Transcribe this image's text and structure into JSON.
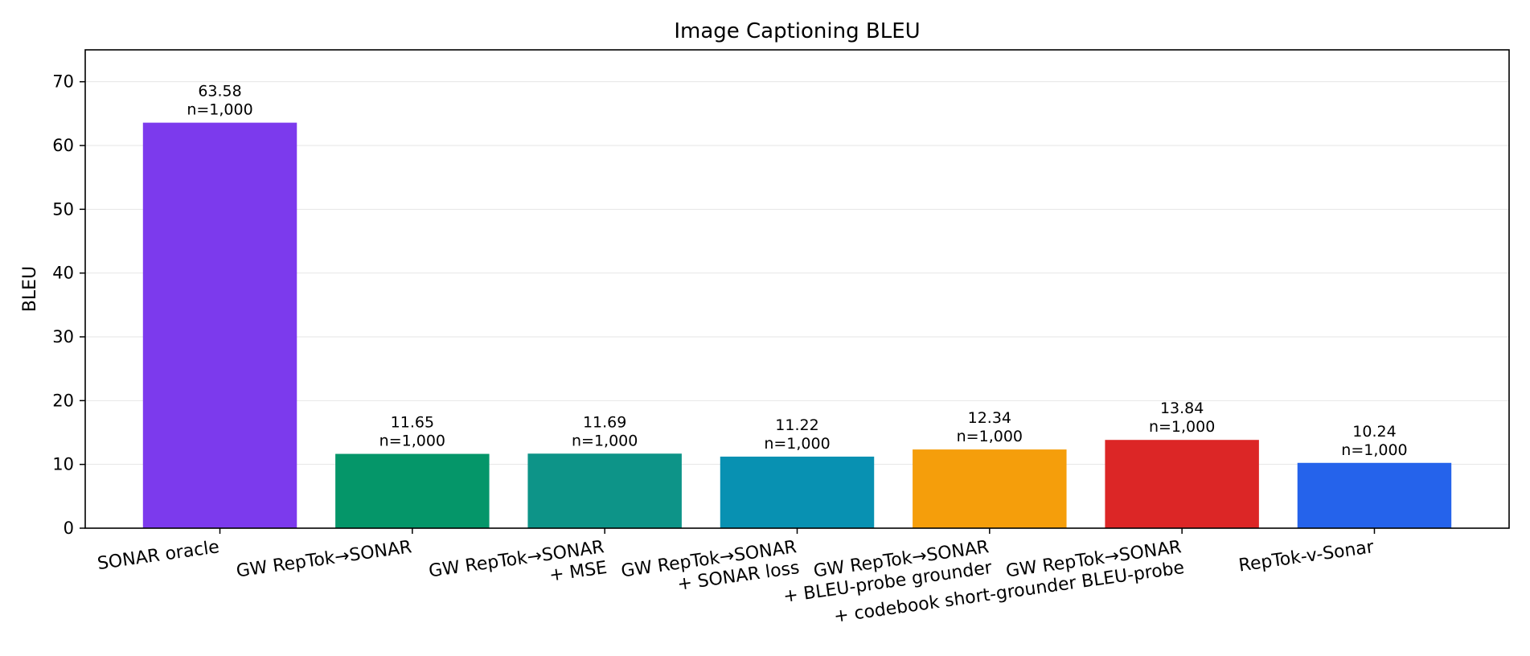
{
  "chart_data": {
    "type": "bar",
    "title": "Image Captioning BLEU",
    "xlabel": "",
    "ylabel": "BLEU",
    "ylim": [
      0,
      75
    ],
    "yticks": [
      0,
      10,
      20,
      30,
      40,
      50,
      60,
      70
    ],
    "grid": "y",
    "categories": [
      [
        "SONAR oracle"
      ],
      [
        "GW RepTok→SONAR"
      ],
      [
        "GW RepTok→SONAR",
        "+ MSE"
      ],
      [
        "GW RepTok→SONAR",
        "+ SONAR loss"
      ],
      [
        "GW RepTok→SONAR",
        "+ BLEU-probe grounder"
      ],
      [
        "GW RepTok→SONAR",
        "+ codebook short-grounder BLEU-probe"
      ],
      [
        "RepTok-v-Sonar"
      ]
    ],
    "values": [
      63.58,
      11.65,
      11.69,
      11.22,
      12.34,
      13.84,
      10.24
    ],
    "value_labels": [
      "63.58",
      "11.65",
      "11.69",
      "11.22",
      "12.34",
      "13.84",
      "10.24"
    ],
    "count_labels": [
      "n=1,000",
      "n=1,000",
      "n=1,000",
      "n=1,000",
      "n=1,000",
      "n=1,000",
      "n=1,000"
    ],
    "colors": [
      "#7c3aed",
      "#059669",
      "#0d9488",
      "#0891b2",
      "#f59e0b",
      "#dc2626",
      "#2563eb"
    ]
  }
}
